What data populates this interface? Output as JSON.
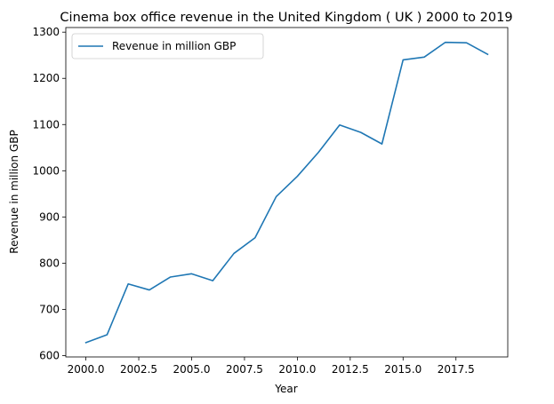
{
  "chart_data": {
    "type": "line",
    "title": "Cinema box office revenue in the United Kingdom ( UK ) 2000 to 2019",
    "xlabel": "Year",
    "ylabel": "Revenue in million GBP",
    "xlim": [
      1999.05,
      2019.95
    ],
    "ylim": [
      597,
      1310
    ],
    "x_ticks": [
      2000.0,
      2002.5,
      2005.0,
      2007.5,
      2010.0,
      2012.5,
      2015.0,
      2017.5
    ],
    "x_tick_labels": [
      "2000.0",
      "2002.5",
      "2005.0",
      "2007.5",
      "2010.0",
      "2012.5",
      "2015.0",
      "2017.5"
    ],
    "y_ticks": [
      600,
      700,
      800,
      900,
      1000,
      1100,
      1200,
      1300
    ],
    "y_tick_labels": [
      "600",
      "700",
      "800",
      "900",
      "1000",
      "1100",
      "1200",
      "1300"
    ],
    "grid": false,
    "legend_position": "upper-left",
    "series": [
      {
        "name": "Revenue in million GBP",
        "color": "#1f77b4",
        "x": [
          2000,
          2001,
          2002,
          2003,
          2004,
          2005,
          2006,
          2007,
          2008,
          2009,
          2010,
          2011,
          2012,
          2013,
          2014,
          2015,
          2016,
          2017,
          2018,
          2019
        ],
        "y": [
          628,
          645,
          755,
          742,
          770,
          777,
          762,
          821,
          855,
          944,
          988,
          1040,
          1099,
          1083,
          1058,
          1240,
          1246,
          1278,
          1277,
          1252
        ]
      }
    ]
  }
}
